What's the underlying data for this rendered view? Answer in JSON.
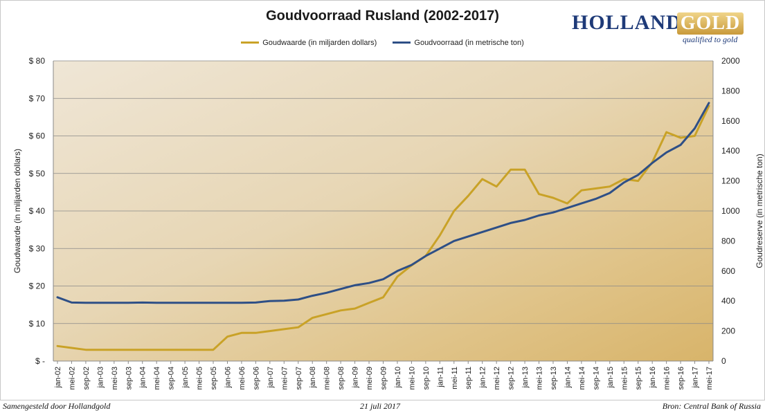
{
  "header": {
    "title": "Goudvoorraad Rusland (2002-2017)",
    "logo_brand": "HOLLAND",
    "logo_brand_accent": "GOLD",
    "logo_tagline": "qualified to gold"
  },
  "footer": {
    "left": "Samengesteld door Hollandgold",
    "center": "21 juli 2017",
    "right": "Bron: Central Bank of Russia"
  },
  "colors": {
    "gold_series": "#c9a227",
    "reserve_series": "#2e4f86",
    "grid": "#888888"
  },
  "chart_data": {
    "type": "line",
    "ylabel": "Goudwaarde  (in miljarden dollars)",
    "y2label": "Goudreserve  (in metrische ton)",
    "ylim": [
      0,
      80
    ],
    "y2lim": [
      0,
      2000
    ],
    "yticks": [
      "$ -",
      "$ 10",
      "$ 20",
      "$ 30",
      "$ 40",
      "$ 50",
      "$ 60",
      "$ 70",
      "$ 80"
    ],
    "y2ticks": [
      "0",
      "200",
      "400",
      "600",
      "800",
      "1000",
      "1200",
      "1400",
      "1600",
      "1800",
      "2000"
    ],
    "categories": [
      "jan-02",
      "mei-02",
      "sep-02",
      "jan-03",
      "mei-03",
      "sep-03",
      "jan-04",
      "mei-04",
      "sep-04",
      "jan-05",
      "mei-05",
      "sep-05",
      "jan-06",
      "mei-06",
      "sep-06",
      "jan-07",
      "mei-07",
      "sep-07",
      "jan-08",
      "mei-08",
      "sep-08",
      "jan-09",
      "mei-09",
      "sep-09",
      "jan-10",
      "mei-10",
      "sep-10",
      "jan-11",
      "mei-11",
      "sep-11",
      "jan-12",
      "mei-12",
      "sep-12",
      "jan-13",
      "mei-13",
      "sep-13",
      "jan-14",
      "mei-14",
      "sep-14",
      "jan-15",
      "mei-15",
      "sep-15",
      "jan-16",
      "mei-16",
      "sep-16",
      "jan-17",
      "mei-17"
    ],
    "grid": true,
    "legend_position": "top",
    "series": [
      {
        "name": "Goudwaarde  (in miljarden dollars)",
        "axis": "left",
        "values": [
          4.0,
          3.5,
          3.0,
          3.0,
          3.0,
          3.0,
          3.0,
          3.0,
          3.0,
          3.0,
          3.0,
          3.0,
          6.5,
          7.5,
          7.5,
          8.0,
          8.5,
          9.0,
          11.5,
          12.5,
          13.5,
          14.0,
          15.5,
          17.0,
          22.5,
          25.5,
          28.0,
          33.5,
          40.0,
          44.0,
          48.5,
          46.5,
          51.0,
          51.0,
          44.5,
          43.5,
          42.0,
          45.5,
          46.0,
          46.5,
          48.5,
          48.0,
          53.0,
          61.0,
          59.5,
          60.0,
          68.0
        ]
      },
      {
        "name": "Goudvoorraad (in metrische ton)",
        "axis": "right",
        "values": [
          425,
          390,
          388,
          388,
          388,
          388,
          390,
          388,
          388,
          388,
          388,
          388,
          388,
          388,
          390,
          400,
          402,
          410,
          435,
          455,
          480,
          505,
          520,
          545,
          600,
          640,
          700,
          750,
          800,
          830,
          860,
          890,
          920,
          940,
          970,
          990,
          1020,
          1050,
          1080,
          1120,
          1190,
          1240,
          1320,
          1390,
          1440,
          1550,
          1720
        ]
      }
    ]
  }
}
